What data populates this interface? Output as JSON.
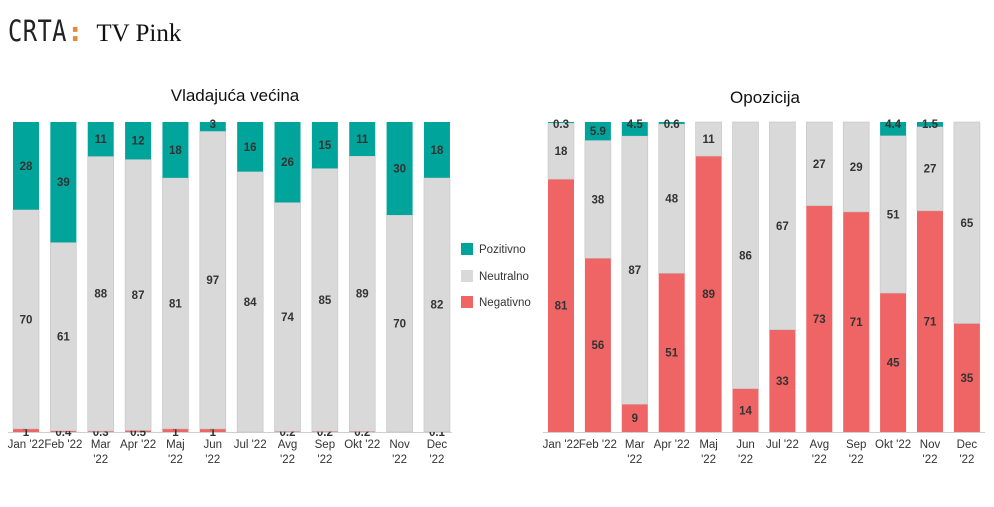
{
  "header": {
    "brand": "CRTA",
    "brand_colon": ":",
    "title": "TV Pink"
  },
  "colors": {
    "positive": "#00a49a",
    "neutral": "#d9d9d9",
    "negative": "#ef6464",
    "accent": "#e8893a"
  },
  "legend": {
    "items": [
      "Pozitivno",
      "Neutralno",
      "Negativno"
    ]
  },
  "chart_data": [
    {
      "type": "bar",
      "stacked": true,
      "title": "Vladajuća većina",
      "categories": [
        "Jan '22",
        "Feb '22",
        "Mar '22",
        "Apr '22",
        "Maj '22",
        "Jun '22",
        "Jul '22",
        "Avg '22",
        "Sep '22",
        "Okt '22",
        "Nov '22",
        "Dec '22"
      ],
      "series": [
        {
          "name": "Negativno",
          "values": [
            1,
            0.4,
            0.3,
            0.5,
            1,
            1,
            0,
            0.2,
            0.2,
            0.2,
            0,
            0.1
          ],
          "labels": [
            "1",
            "0.4",
            "0.3",
            "0.5",
            "1",
            "1",
            "",
            "0.2",
            "0.2",
            "0.2",
            "",
            "0.1"
          ]
        },
        {
          "name": "Neutralno",
          "values": [
            70,
            61,
            88,
            87,
            81,
            97,
            84,
            74,
            85,
            89,
            70,
            82
          ],
          "labels": [
            "70",
            "61",
            "88",
            "87",
            "81",
            "97",
            "84",
            "74",
            "85",
            "89",
            "70",
            "82"
          ]
        },
        {
          "name": "Pozitivno",
          "values": [
            28,
            39,
            11,
            12,
            18,
            3,
            16,
            26,
            15,
            11,
            30,
            18
          ],
          "labels": [
            "28",
            "39",
            "11",
            "12",
            "18",
            "3",
            "16",
            "26",
            "15",
            "11",
            "30",
            "18"
          ]
        }
      ],
      "ylim": [
        0,
        100
      ]
    },
    {
      "type": "bar",
      "stacked": true,
      "title": "Opozicija",
      "categories": [
        "Jan '22",
        "Feb '22",
        "Mar '22",
        "Apr '22",
        "Maj '22",
        "Jun '22",
        "Jul '22",
        "Avg '22",
        "Sep '22",
        "Okt '22",
        "Nov '22",
        "Dec '22"
      ],
      "series": [
        {
          "name": "Negativno",
          "values": [
            81,
            56,
            9,
            51,
            89,
            14,
            33,
            73,
            71,
            45,
            71,
            35
          ],
          "labels": [
            "81",
            "56",
            "9",
            "51",
            "89",
            "14",
            "33",
            "73",
            "71",
            "45",
            "71",
            "35"
          ]
        },
        {
          "name": "Neutralno",
          "values": [
            18,
            38,
            87,
            48,
            11,
            86,
            67,
            27,
            29,
            51,
            27,
            65
          ],
          "labels": [
            "18",
            "38",
            "87",
            "48",
            "11",
            "86",
            "67",
            "27",
            "29",
            "51",
            "27",
            "65"
          ]
        },
        {
          "name": "Pozitivno",
          "values": [
            0.3,
            5.9,
            4.5,
            0.6,
            0,
            0,
            0,
            0,
            0,
            4.4,
            1.5,
            0
          ],
          "labels": [
            "0.3",
            "5.9",
            "4.5",
            "0.6",
            "",
            "",
            "",
            "",
            "",
            "4.4",
            "1.5",
            ""
          ]
        }
      ],
      "ylim": [
        0,
        100
      ]
    }
  ]
}
